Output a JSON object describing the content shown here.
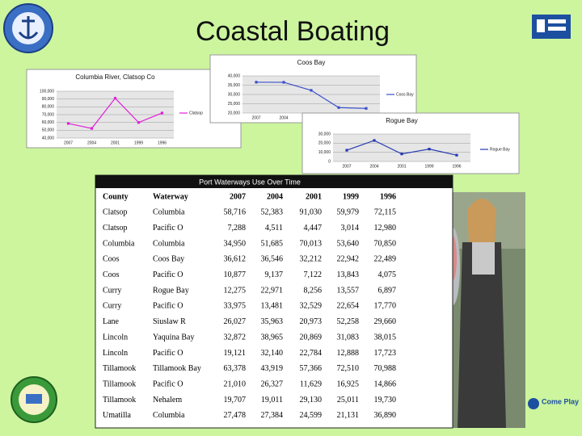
{
  "header": {
    "title": "Coastal Boating"
  },
  "charts": [
    {
      "type": "line",
      "title": "Columbia River, Clatsop Co",
      "categories": [
        "2007",
        "2004",
        "2001",
        "1999",
        "1996"
      ],
      "series": [
        {
          "name": "Clatsop",
          "color": "#e020d8",
          "values": [
            58716,
            52383,
            91030,
            59979,
            72115
          ]
        }
      ],
      "ylim": [
        40000,
        100000
      ],
      "yticks": [
        {
          "value": 40000,
          "label": "40,000"
        },
        {
          "value": 50000,
          "label": "50,000"
        },
        {
          "value": 60000,
          "label": "60,000"
        },
        {
          "value": 70000,
          "label": "70,000"
        },
        {
          "value": 80000,
          "label": "80,000"
        },
        {
          "value": 90000,
          "label": "90,000"
        },
        {
          "value": 100000,
          "label": "100,000"
        }
      ],
      "grid": true
    },
    {
      "type": "line",
      "title": "Coos Bay",
      "categories": [
        "2007",
        "2004",
        "2001",
        "1999",
        "1996"
      ],
      "series": [
        {
          "name": "Coos Bay",
          "color": "#3a4fc8",
          "values": [
            36612,
            36546,
            32212,
            22942,
            22489
          ]
        }
      ],
      "ylim": [
        20000,
        40000
      ],
      "yticks": [
        {
          "value": 20000,
          "label": "20,000"
        },
        {
          "value": 25000,
          "label": "25,000"
        },
        {
          "value": 30000,
          "label": "30,000"
        },
        {
          "value": 35000,
          "label": "35,000"
        },
        {
          "value": 40000,
          "label": "40,000"
        }
      ],
      "grid": true
    },
    {
      "type": "line",
      "title": "Rogue Bay",
      "categories": [
        "2007",
        "2004",
        "2001",
        "1999",
        "1996"
      ],
      "series": [
        {
          "name": "Rogue Bay",
          "color": "#2438b0",
          "values": [
            12275,
            22971,
            8256,
            13557,
            6897
          ]
        }
      ],
      "ylim": [
        0,
        30000
      ],
      "yticks": [
        0,
        {
          "value": 10000,
          "label": "10,000"
        },
        {
          "value": 20000,
          "label": "20,000"
        },
        {
          "value": 30000,
          "label": "30,000"
        }
      ],
      "grid": true
    }
  ],
  "table": {
    "title": "Port Waterways Use Over Time",
    "columns": [
      "County",
      "Waterway",
      "2007",
      "2004",
      "2001",
      "1999",
      "1996"
    ],
    "rows": [
      [
        "Clatsop",
        "Columbia",
        "58,716",
        "52,383",
        "91,030",
        "59,979",
        "72,115"
      ],
      [
        "Clatsop",
        "Pacific O",
        "7,288",
        "4,511",
        "4,447",
        "3,014",
        "12,980"
      ],
      [
        "Columbia",
        "Columbia",
        "34,950",
        "51,685",
        "70,013",
        "53,640",
        "70,850"
      ],
      [
        "Coos",
        "Coos Bay",
        "36,612",
        "36,546",
        "32,212",
        "22,942",
        "22,489"
      ],
      [
        "Coos",
        "Pacific O",
        "10,877",
        "9,137",
        "7,122",
        "13,843",
        "4,075"
      ],
      [
        "Curry",
        "Rogue Bay",
        "12,275",
        "22,971",
        "8,256",
        "13,557",
        "6,897"
      ],
      [
        "Curry",
        "Pacific O",
        "33,975",
        "13,481",
        "32,529",
        "22,654",
        "17,770"
      ],
      [
        "Lane",
        "Siuslaw R",
        "26,027",
        "35,963",
        "20,973",
        "52,258",
        "29,660"
      ],
      [
        "Lincoln",
        "Yaquina Bay",
        "32,872",
        "38,965",
        "20,869",
        "31,083",
        "38,015"
      ],
      [
        "Lincoln",
        "Pacific O",
        "19,121",
        "32,140",
        "22,784",
        "12,888",
        "17,723"
      ],
      [
        "Tillamook",
        "Tillamook Bay",
        "63,378",
        "43,919",
        "57,366",
        "72,510",
        "70,988"
      ],
      [
        "Tillamook",
        "Pacific O",
        "21,010",
        "26,327",
        "11,629",
        "16,925",
        "14,866"
      ],
      [
        "Tillamook",
        "Nehalem",
        "19,707",
        "19,011",
        "29,130",
        "25,011",
        "19,730"
      ],
      [
        "Umatilla",
        "Columbia",
        "27,478",
        "27,384",
        "24,599",
        "21,131",
        "36,890"
      ]
    ]
  },
  "footer": {
    "logo_text": "Come Play"
  }
}
